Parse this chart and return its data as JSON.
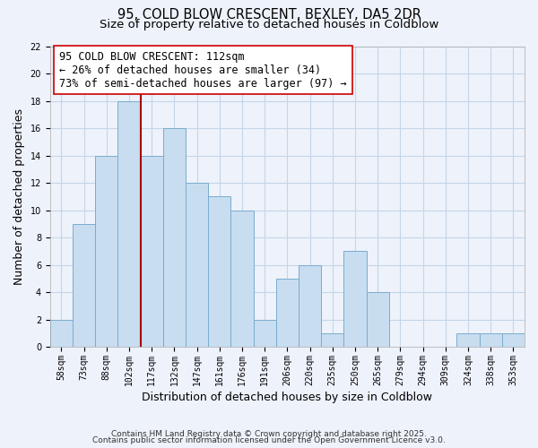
{
  "title1": "95, COLD BLOW CRESCENT, BEXLEY, DA5 2DR",
  "title2": "Size of property relative to detached houses in Coldblow",
  "xlabel": "Distribution of detached houses by size in Coldblow",
  "ylabel": "Number of detached properties",
  "bin_labels": [
    "58sqm",
    "73sqm",
    "88sqm",
    "102sqm",
    "117sqm",
    "132sqm",
    "147sqm",
    "161sqm",
    "176sqm",
    "191sqm",
    "206sqm",
    "220sqm",
    "235sqm",
    "250sqm",
    "265sqm",
    "279sqm",
    "294sqm",
    "309sqm",
    "324sqm",
    "338sqm",
    "353sqm"
  ],
  "bar_heights": [
    2,
    9,
    14,
    18,
    14,
    16,
    12,
    11,
    10,
    2,
    5,
    6,
    1,
    7,
    4,
    0,
    0,
    0,
    1,
    1,
    1
  ],
  "bar_color": "#c8ddf0",
  "bar_edge_color": "#7aacce",
  "ref_line_color": "#aa0000",
  "ref_line_x": 3.5,
  "annotation_title": "95 COLD BLOW CRESCENT: 112sqm",
  "annotation_line1": "← 26% of detached houses are smaller (34)",
  "annotation_line2": "73% of semi-detached houses are larger (97) →",
  "annotation_box_facecolor": "#ffffff",
  "annotation_box_edgecolor": "#cc0000",
  "ylim": [
    0,
    22
  ],
  "yticks": [
    0,
    2,
    4,
    6,
    8,
    10,
    12,
    14,
    16,
    18,
    20,
    22
  ],
  "footer1": "Contains HM Land Registry data © Crown copyright and database right 2025.",
  "footer2": "Contains public sector information licensed under the Open Government Licence v3.0.",
  "background_color": "#eef2fb",
  "grid_color": "#c5d5e8",
  "title_fontsize": 10.5,
  "subtitle_fontsize": 9.5,
  "axis_label_fontsize": 9,
  "tick_fontsize": 7,
  "footer_fontsize": 6.5,
  "annotation_fontsize": 8.5
}
